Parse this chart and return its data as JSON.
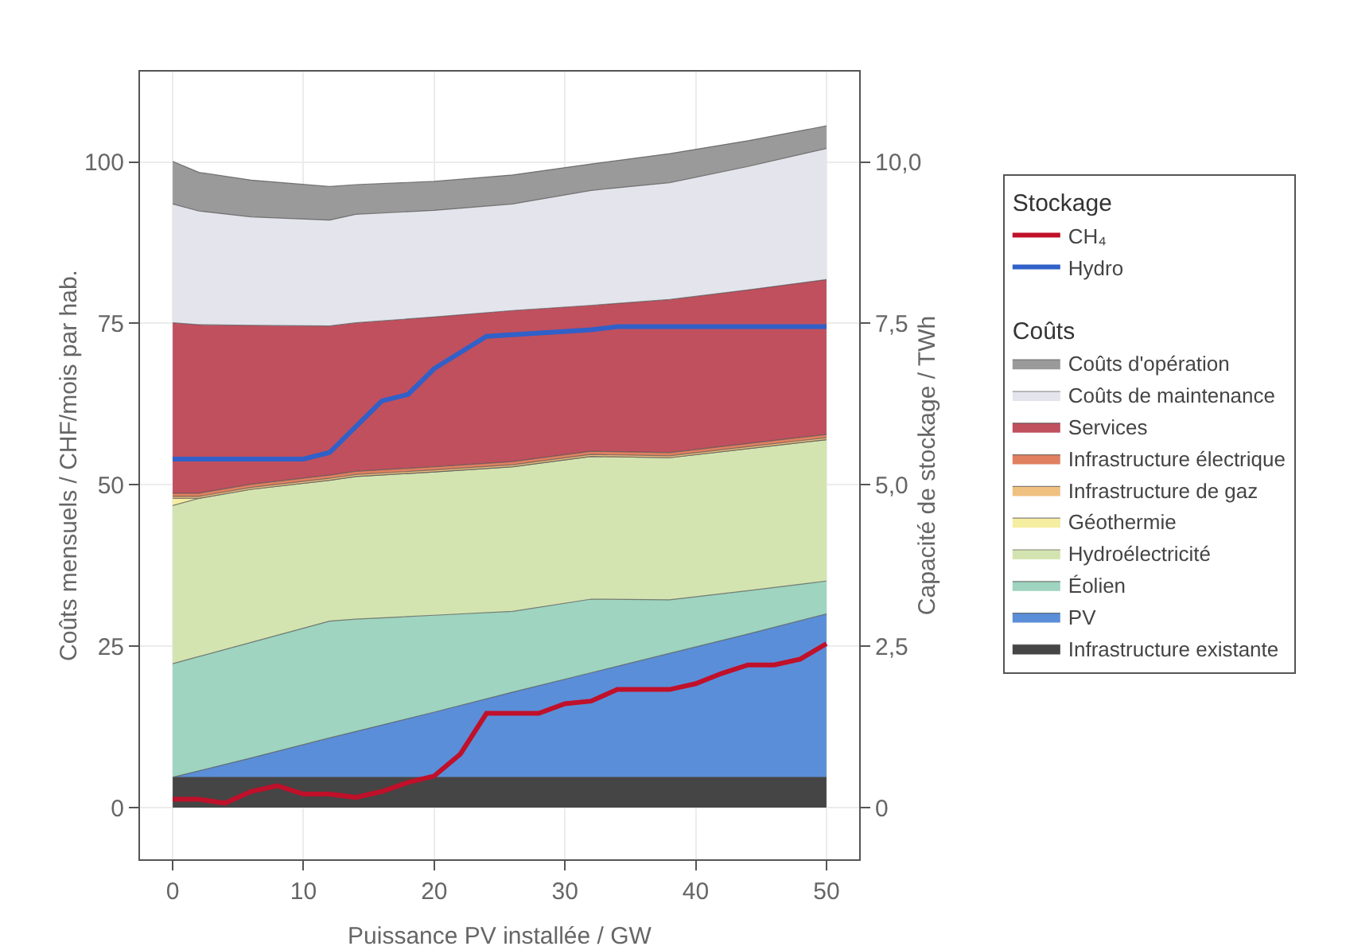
{
  "chart_data": {
    "type": "area",
    "stacked": true,
    "xlabel": "Puissance PV installée / GW",
    "ylabel": "Coûts mensuels / CHF/mois par hab.",
    "y2label": "Capacité de stockage / TWh",
    "legend_title": [
      "Stockage",
      "Coûts"
    ],
    "x": [
      0,
      2,
      6,
      12,
      14,
      20,
      26,
      32,
      38,
      44,
      50
    ],
    "xlim": [
      -2.5,
      52.5
    ],
    "xticks": [
      0,
      10,
      20,
      30,
      40,
      50
    ],
    "ylim": [
      -8,
      114
    ],
    "yticks": [
      0,
      25,
      50,
      75,
      100
    ],
    "y2lim": [
      -0.8,
      11.4
    ],
    "y2ticks": [
      0,
      {
        "value": 2.5,
        "label": "2,5"
      },
      {
        "value": 5,
        "label": "5,0"
      },
      {
        "value": 7.5,
        "label": "7,5"
      },
      {
        "value": 10,
        "label": "10,0"
      }
    ],
    "grid": true,
    "legend": "right",
    "series": [
      {
        "name": "Infrastructure existante",
        "color": "#454545",
        "values": [
          4.7,
          4.7,
          4.7,
          4.7,
          4.7,
          4.7,
          4.7,
          4.7,
          4.7,
          4.7,
          4.7
        ]
      },
      {
        "name": "PV",
        "color": "#5b8ed8",
        "values": [
          0,
          1.0,
          3.0,
          6.1,
          7.1,
          10.1,
          13.2,
          16.2,
          19.2,
          22.2,
          25.3
        ]
      },
      {
        "name": "Éolien",
        "color": "#9ed4c0",
        "values": [
          17.6,
          17.7,
          17.9,
          18.1,
          17.4,
          15.0,
          12.5,
          11.4,
          8.3,
          6.7,
          5.1
        ]
      },
      {
        "name": "Hydroélectricité",
        "color": "#d4e4b0",
        "values": [
          24.5,
          24.5,
          23.7,
          21.8,
          22.1,
          22.2,
          22.4,
          22.1,
          22.0,
          22.0,
          21.9
        ]
      },
      {
        "name": "Géothermie",
        "color": "#f5eda0",
        "values": [
          1.1,
          0,
          0,
          0,
          0,
          0,
          0,
          0,
          0,
          0,
          0
        ]
      },
      {
        "name": "Infrastructure de gaz",
        "color": "#f0c080",
        "values": [
          0.3,
          0.3,
          0.3,
          0.3,
          0.3,
          0.3,
          0.3,
          0.3,
          0.3,
          0.3,
          0.3
        ]
      },
      {
        "name": "Infrastructure électrique",
        "color": "#e08060",
        "values": [
          0.5,
          0.5,
          0.5,
          0.5,
          0.5,
          0.5,
          0.5,
          0.5,
          0.5,
          0.5,
          0.5
        ]
      },
      {
        "name": "Services",
        "color": "#c0505e",
        "values": [
          26.4,
          26.1,
          24.6,
          23.1,
          23.0,
          23.2,
          23.4,
          22.6,
          23.7,
          23.8,
          24.0
        ]
      },
      {
        "name": "Coûts de maintenance",
        "color": "#e4e4ec",
        "values": [
          18.4,
          17.6,
          16.8,
          16.4,
          16.8,
          16.5,
          16.5,
          17.8,
          18.1,
          19.1,
          20.3
        ]
      },
      {
        "name": "Coûts d'opération",
        "color": "#9a9a9a",
        "values": [
          6.6,
          6.0,
          5.7,
          5.2,
          4.6,
          4.5,
          4.5,
          4.1,
          4.5,
          4.0,
          3.5
        ]
      },
      {
        "name": "CH₄",
        "type": "line",
        "axis": "y2",
        "color": "#c0102a",
        "x": [
          0,
          2,
          4,
          6,
          8,
          10,
          12,
          14,
          16,
          18,
          20,
          22,
          24,
          28,
          30,
          32,
          34,
          38,
          40,
          42,
          44,
          46,
          48,
          50
        ],
        "values": [
          0.13,
          0.13,
          0.07,
          0.25,
          0.34,
          0.21,
          0.21,
          0.16,
          0.25,
          0.39,
          0.49,
          0.83,
          1.46,
          1.46,
          1.61,
          1.65,
          1.83,
          1.83,
          1.92,
          2.08,
          2.21,
          2.21,
          2.3,
          2.54
        ]
      },
      {
        "name": "Hydro",
        "type": "line",
        "axis": "y2",
        "color": "#3060c8",
        "x": [
          0,
          10,
          12,
          16,
          18,
          20,
          24,
          32,
          34,
          50
        ],
        "values": [
          5.4,
          5.4,
          5.5,
          6.3,
          6.4,
          6.8,
          7.3,
          7.4,
          7.45,
          7.45
        ]
      }
    ]
  }
}
